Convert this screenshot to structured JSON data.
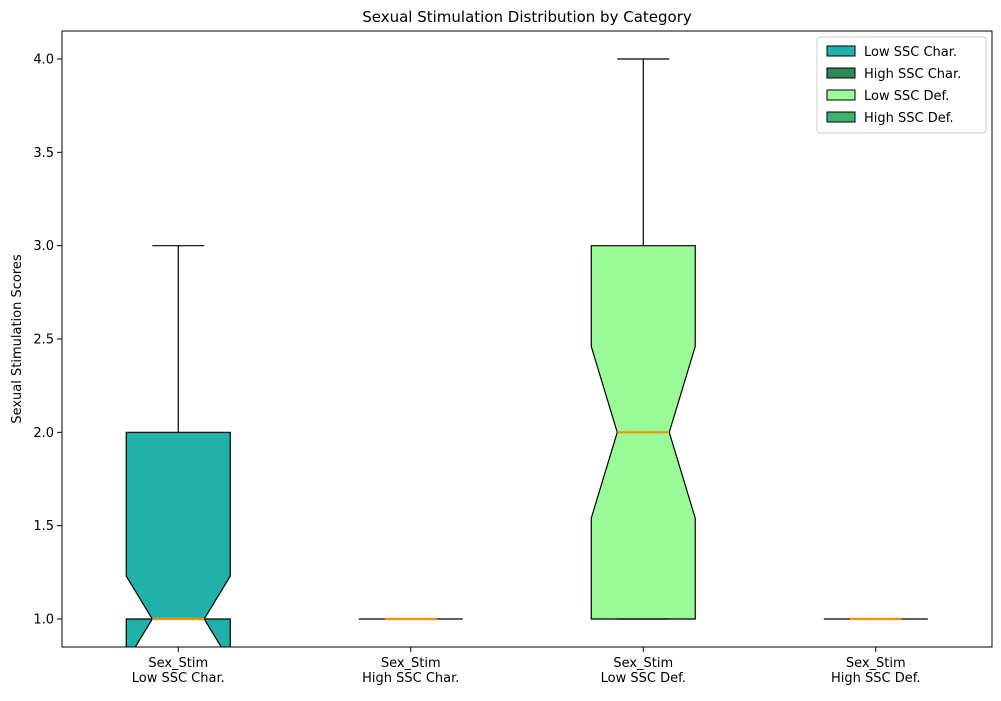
{
  "chart_data": {
    "type": "box",
    "title": "Sexual Stimulation Distribution by Category",
    "xlabel": "",
    "ylabel": "Sexual Stimulation Scores",
    "ylim": [
      0.85,
      4.15
    ],
    "yticks": [
      "1.0",
      "1.5",
      "2.0",
      "2.5",
      "3.0",
      "3.5",
      "4.0"
    ],
    "ytick_values": [
      1.0,
      1.5,
      2.0,
      2.5,
      3.0,
      3.5,
      4.0
    ],
    "grid": false,
    "legend_position": "top-right",
    "notched": true,
    "boxes": [
      {
        "label_line1": "Sex_Stim",
        "label_line2": "Low SSC Char.",
        "legend": "Low SSC Char.",
        "color": "#20b2aa",
        "whisker_low": 1.0,
        "q1": 1.0,
        "median": 1.0,
        "q3": 2.0,
        "whisker_high": 3.0,
        "notch_low": 0.77,
        "notch_high": 1.23
      },
      {
        "label_line1": "Sex_Stim",
        "label_line2": "High SSC Char.",
        "legend": "High SSC Char.",
        "color": "#2e8b57",
        "whisker_low": 1.0,
        "q1": 1.0,
        "median": 1.0,
        "q3": 1.0,
        "whisker_high": 1.0,
        "notch_low": 1.0,
        "notch_high": 1.0
      },
      {
        "label_line1": "Sex_Stim",
        "label_line2": "Low SSC Def.",
        "legend": "Low SSC Def.",
        "color": "#98fb98",
        "whisker_low": 1.0,
        "q1": 1.0,
        "median": 2.0,
        "q3": 3.0,
        "whisker_high": 4.0,
        "notch_low": 1.54,
        "notch_high": 2.46
      },
      {
        "label_line1": "Sex_Stim",
        "label_line2": "High SSC Def.",
        "legend": "High SSC Def.",
        "color": "#3cb371",
        "whisker_low": 1.0,
        "q1": 1.0,
        "median": 1.0,
        "q3": 1.0,
        "whisker_high": 1.0,
        "notch_low": 1.0,
        "notch_high": 1.0
      }
    ],
    "median_color": "#ff8c00"
  }
}
